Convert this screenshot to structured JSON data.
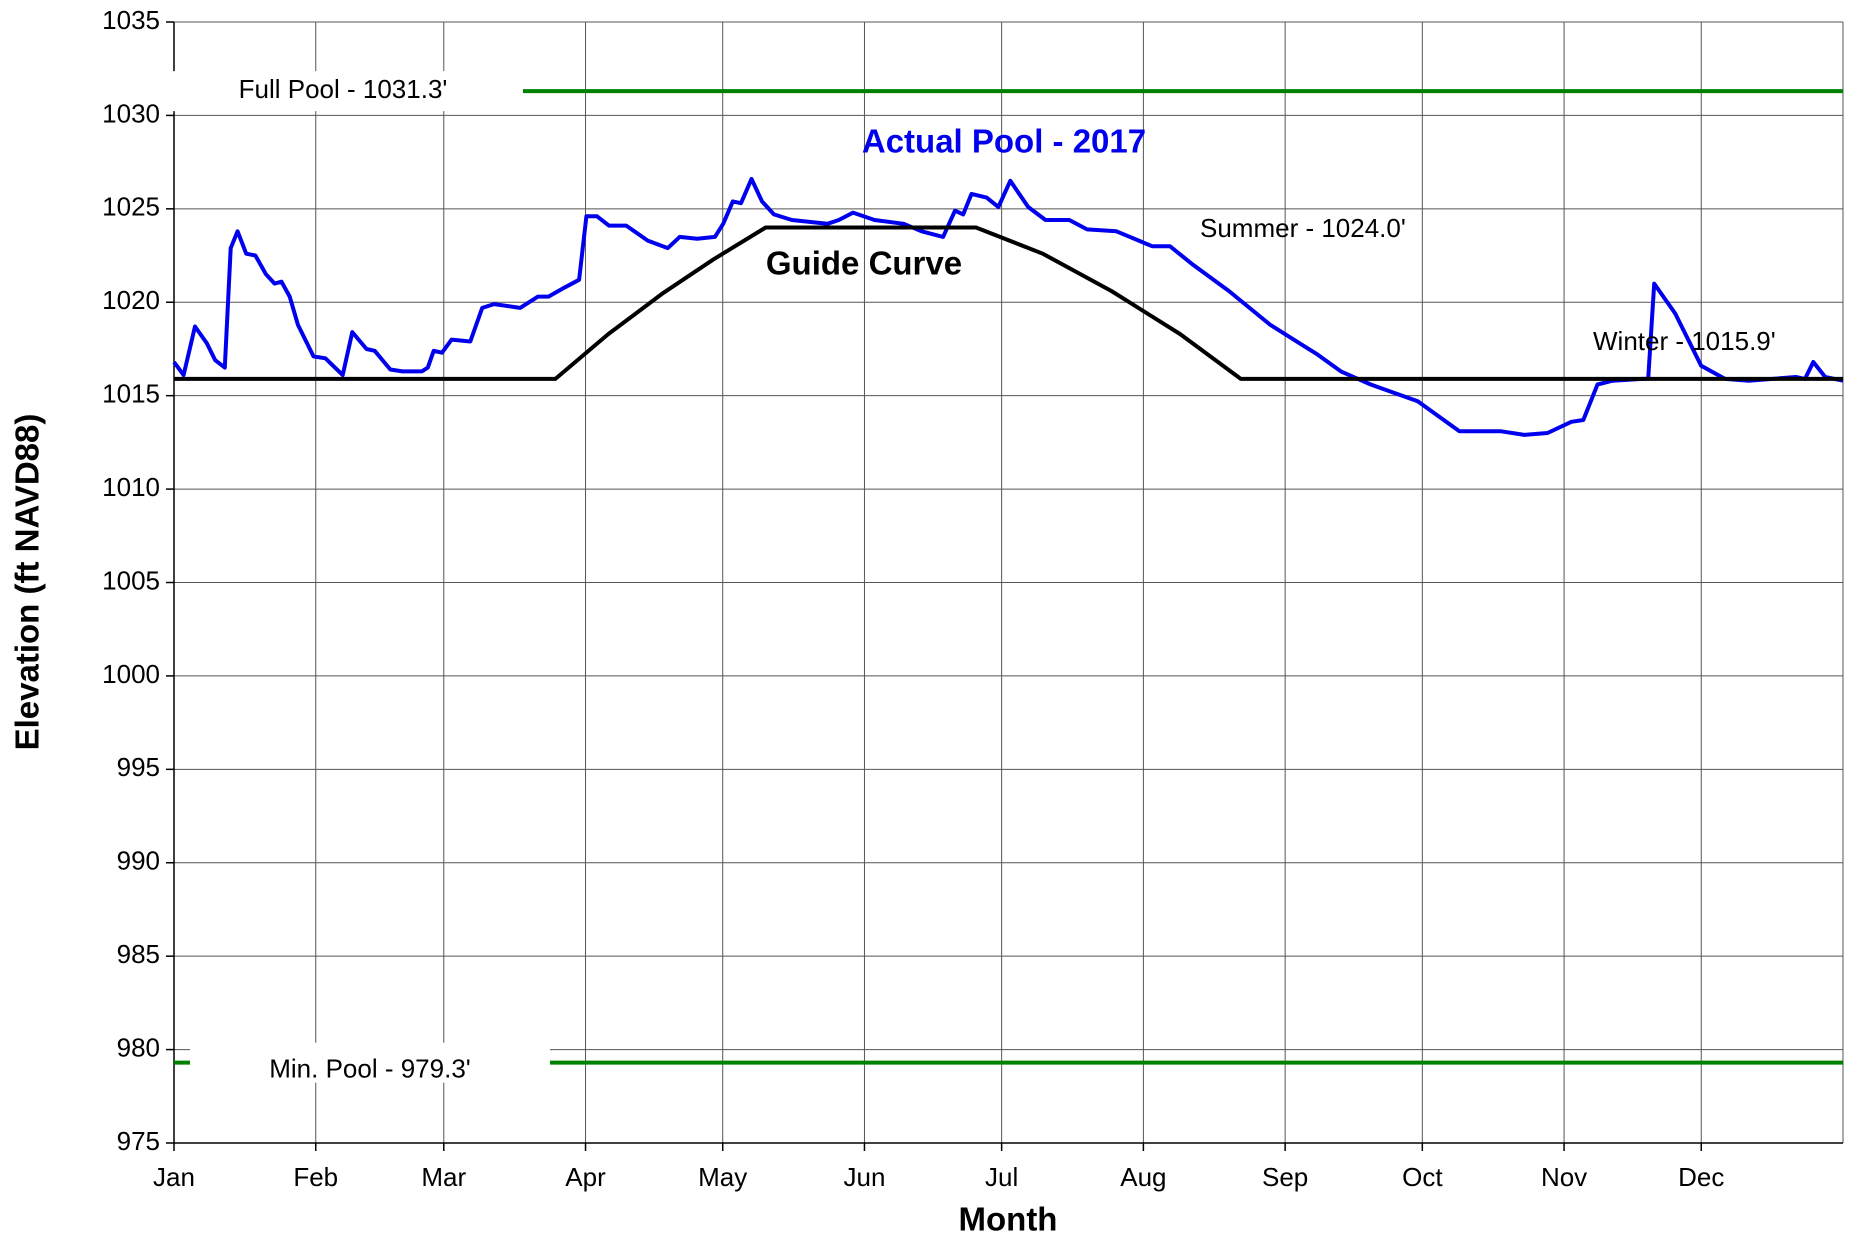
{
  "chart_data": {
    "type": "line",
    "x_label": "Month",
    "y_label": "Elevation (ft NAVD88)",
    "xlim": [
      0,
      365
    ],
    "xticks": [
      {
        "value": 0,
        "label": "Jan"
      },
      {
        "value": 31,
        "label": "Feb"
      },
      {
        "value": 59,
        "label": "Mar"
      },
      {
        "value": 90,
        "label": "Apr"
      },
      {
        "value": 120,
        "label": "May"
      },
      {
        "value": 151,
        "label": "Jun"
      },
      {
        "value": 181,
        "label": "Jul"
      },
      {
        "value": 212,
        "label": "Aug"
      },
      {
        "value": 243,
        "label": "Sep"
      },
      {
        "value": 273,
        "label": "Oct"
      },
      {
        "value": 304,
        "label": "Nov"
      },
      {
        "value": 334,
        "label": "Dec"
      }
    ],
    "ylim": [
      975,
      1035
    ],
    "yticks": [
      975,
      980,
      985,
      990,
      995,
      1000,
      1005,
      1010,
      1015,
      1020,
      1025,
      1030,
      1035
    ],
    "grid": true,
    "series": [
      {
        "name": "Actual Pool - 2017",
        "color": "#0000ee",
        "x": [
          0,
          2.1,
          4.6,
          7.2,
          9.0,
          11.1,
          12.4,
          13.9,
          15.8,
          17.8,
          20.1,
          22.0,
          23.5,
          25.3,
          27.1,
          30.5,
          33.1,
          36.9,
          39.0,
          42.1,
          43.9,
          47.3,
          49.9,
          54.2,
          55.5,
          56.8,
          58.6,
          60.7,
          64.8,
          67.4,
          70.0,
          75.7,
          79.6,
          81.9,
          85.5,
          88.6,
          90.2,
          92.5,
          95.1,
          98.9,
          103.6,
          108.0,
          110.6,
          114.4,
          118.3,
          120.1,
          122.2,
          124.0,
          126.3,
          128.6,
          131.2,
          135.1,
          142.9,
          145.4,
          148.5,
          153.2,
          159.6,
          163.5,
          168.2,
          170.8,
          172.6,
          174.4,
          177.7,
          180.3,
          182.9,
          186.8,
          190.6,
          195.8,
          199.7,
          206.1,
          213.9,
          217.8,
          222.9,
          230.7,
          239.7,
          246.2,
          250.1,
          255.2,
          261.7,
          272.0,
          281.1,
          290.1,
          295.3,
          300.4,
          305.6,
          308.2,
          311.3,
          314.6,
          321.1,
          322.4,
          323.7,
          328.3,
          334.0,
          339.2,
          344.4,
          354.7,
          356.7,
          358.5,
          361.1,
          365.0
        ],
        "values": [
          1016.8,
          1016.1,
          1018.7,
          1017.8,
          1016.9,
          1016.5,
          1022.9,
          1023.8,
          1022.6,
          1022.5,
          1021.5,
          1021.0,
          1021.1,
          1020.3,
          1018.8,
          1017.1,
          1017.0,
          1016.1,
          1018.4,
          1017.5,
          1017.4,
          1016.4,
          1016.3,
          1016.3,
          1016.5,
          1017.4,
          1017.3,
          1018.0,
          1017.9,
          1019.7,
          1019.9,
          1019.7,
          1020.3,
          1020.3,
          1020.8,
          1021.2,
          1024.6,
          1024.6,
          1024.1,
          1024.1,
          1023.3,
          1022.9,
          1023.5,
          1023.4,
          1023.5,
          1024.2,
          1025.4,
          1025.3,
          1026.6,
          1025.4,
          1024.7,
          1024.4,
          1024.2,
          1024.4,
          1024.8,
          1024.4,
          1024.2,
          1023.8,
          1023.5,
          1024.9,
          1024.7,
          1025.8,
          1025.6,
          1025.1,
          1026.5,
          1025.1,
          1024.4,
          1024.4,
          1023.9,
          1023.8,
          1023.0,
          1023.0,
          1022.0,
          1020.6,
          1018.8,
          1017.8,
          1017.2,
          1016.3,
          1015.6,
          1014.7,
          1013.1,
          1013.1,
          1012.9,
          1013.0,
          1013.6,
          1013.7,
          1015.6,
          1015.8,
          1015.9,
          1015.9,
          1021.0,
          1019.4,
          1016.6,
          1015.9,
          1015.8,
          1016.0,
          1015.9,
          1016.8,
          1016.0,
          1015.8
        ]
      },
      {
        "name": "Guide Curve",
        "color": "#000000",
        "x": [
          0,
          83.4,
          95,
          107,
          118,
          129.4,
          175.4,
          190,
          205,
          220,
          233.3,
          365
        ],
        "values": [
          1015.9,
          1015.9,
          1018.3,
          1020.5,
          1022.3,
          1024.0,
          1024.0,
          1022.6,
          1020.6,
          1018.3,
          1015.9,
          1015.9
        ]
      }
    ],
    "reference_lines": [
      {
        "label": "Full Pool - 1031.3'",
        "value": 1031.3,
        "color": "#008000"
      },
      {
        "label": "Min. Pool - 979.3'",
        "value": 979.3,
        "color": "#008000"
      }
    ],
    "annotations": [
      "Summer - 1024.0'",
      "Winter - 1015.9'"
    ]
  }
}
